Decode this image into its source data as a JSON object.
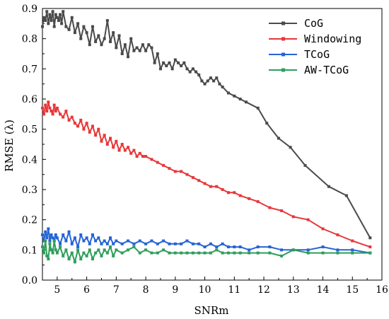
{
  "chart_data": {
    "type": "line",
    "xlabel": "SNRm",
    "ylabel": "RMSE (λ)",
    "xlim": [
      4.5,
      16
    ],
    "ylim": [
      0,
      0.9
    ],
    "x_ticks": [
      5,
      6,
      7,
      8,
      9,
      10,
      11,
      12,
      13,
      14,
      15,
      16
    ],
    "y_ticks": [
      0.0,
      0.1,
      0.2,
      0.3,
      0.4,
      0.5,
      0.6,
      0.7,
      0.8,
      0.9
    ],
    "legend_position": "top-right",
    "grid": false,
    "series": [
      {
        "name": "CoG",
        "color": "#4a4a4a",
        "x": [
          4.5,
          4.55,
          4.6,
          4.65,
          4.7,
          4.75,
          4.8,
          4.85,
          4.9,
          4.95,
          5.0,
          5.05,
          5.1,
          5.15,
          5.2,
          5.3,
          5.4,
          5.5,
          5.6,
          5.7,
          5.8,
          5.9,
          6.0,
          6.1,
          6.2,
          6.3,
          6.4,
          6.5,
          6.6,
          6.7,
          6.8,
          6.9,
          7.0,
          7.1,
          7.2,
          7.3,
          7.4,
          7.5,
          7.6,
          7.7,
          7.8,
          7.9,
          8.0,
          8.1,
          8.2,
          8.3,
          8.4,
          8.5,
          8.6,
          8.7,
          8.8,
          8.9,
          9.0,
          9.1,
          9.2,
          9.3,
          9.4,
          9.5,
          9.6,
          9.7,
          9.8,
          9.9,
          10.0,
          10.1,
          10.2,
          10.3,
          10.4,
          10.5,
          10.6,
          10.8,
          11.0,
          11.2,
          11.4,
          11.8,
          12.1,
          12.5,
          12.9,
          13.4,
          14.2,
          14.8,
          15.6
        ],
        "y": [
          0.84,
          0.87,
          0.86,
          0.89,
          0.85,
          0.88,
          0.86,
          0.89,
          0.84,
          0.88,
          0.87,
          0.86,
          0.88,
          0.85,
          0.89,
          0.84,
          0.83,
          0.87,
          0.82,
          0.85,
          0.8,
          0.84,
          0.82,
          0.78,
          0.84,
          0.79,
          0.81,
          0.78,
          0.8,
          0.86,
          0.79,
          0.82,
          0.77,
          0.81,
          0.75,
          0.78,
          0.74,
          0.8,
          0.76,
          0.77,
          0.76,
          0.78,
          0.76,
          0.78,
          0.77,
          0.72,
          0.75,
          0.7,
          0.72,
          0.71,
          0.72,
          0.7,
          0.73,
          0.72,
          0.71,
          0.72,
          0.7,
          0.69,
          0.7,
          0.69,
          0.68,
          0.66,
          0.65,
          0.66,
          0.67,
          0.66,
          0.67,
          0.65,
          0.64,
          0.62,
          0.61,
          0.6,
          0.59,
          0.57,
          0.52,
          0.47,
          0.44,
          0.38,
          0.31,
          0.28,
          0.14
        ]
      },
      {
        "name": "Windowing",
        "color": "#e8373a",
        "x": [
          4.5,
          4.55,
          4.6,
          4.65,
          4.7,
          4.75,
          4.8,
          4.85,
          4.9,
          4.95,
          5.0,
          5.1,
          5.2,
          5.3,
          5.4,
          5.5,
          5.6,
          5.7,
          5.8,
          5.9,
          6.0,
          6.1,
          6.2,
          6.3,
          6.4,
          6.5,
          6.6,
          6.7,
          6.8,
          6.9,
          7.0,
          7.1,
          7.2,
          7.3,
          7.4,
          7.5,
          7.6,
          7.7,
          7.8,
          7.9,
          8.0,
          8.2,
          8.4,
          8.6,
          8.8,
          9.0,
          9.2,
          9.4,
          9.6,
          9.8,
          10.0,
          10.2,
          10.4,
          10.6,
          10.8,
          11.0,
          11.2,
          11.5,
          11.8,
          12.2,
          12.6,
          13.0,
          13.5,
          14.0,
          14.5,
          15.0,
          15.6
        ],
        "y": [
          0.57,
          0.55,
          0.58,
          0.56,
          0.59,
          0.57,
          0.56,
          0.55,
          0.58,
          0.56,
          0.57,
          0.55,
          0.54,
          0.56,
          0.53,
          0.54,
          0.52,
          0.51,
          0.53,
          0.5,
          0.52,
          0.49,
          0.51,
          0.48,
          0.5,
          0.46,
          0.48,
          0.45,
          0.47,
          0.44,
          0.46,
          0.43,
          0.45,
          0.43,
          0.44,
          0.42,
          0.43,
          0.41,
          0.42,
          0.41,
          0.41,
          0.4,
          0.39,
          0.38,
          0.37,
          0.36,
          0.36,
          0.35,
          0.34,
          0.33,
          0.32,
          0.31,
          0.31,
          0.3,
          0.29,
          0.29,
          0.28,
          0.27,
          0.26,
          0.24,
          0.23,
          0.21,
          0.2,
          0.17,
          0.15,
          0.13,
          0.11
        ]
      },
      {
        "name": "TCoG",
        "color": "#2563d6",
        "x": [
          4.5,
          4.55,
          4.6,
          4.65,
          4.7,
          4.75,
          4.8,
          4.85,
          4.9,
          4.95,
          5.0,
          5.1,
          5.2,
          5.3,
          5.4,
          5.5,
          5.6,
          5.7,
          5.8,
          5.9,
          6.0,
          6.1,
          6.2,
          6.3,
          6.4,
          6.5,
          6.6,
          6.7,
          6.8,
          6.9,
          7.0,
          7.2,
          7.4,
          7.6,
          7.8,
          8.0,
          8.2,
          8.4,
          8.6,
          8.8,
          9.0,
          9.2,
          9.4,
          9.6,
          9.8,
          10.0,
          10.2,
          10.4,
          10.6,
          10.8,
          11.0,
          11.2,
          11.5,
          11.8,
          12.2,
          12.6,
          13.0,
          13.5,
          14.0,
          14.5,
          15.0,
          15.6
        ],
        "y": [
          0.15,
          0.13,
          0.16,
          0.14,
          0.17,
          0.13,
          0.15,
          0.14,
          0.13,
          0.15,
          0.14,
          0.12,
          0.15,
          0.13,
          0.16,
          0.12,
          0.14,
          0.11,
          0.15,
          0.13,
          0.14,
          0.12,
          0.15,
          0.13,
          0.14,
          0.12,
          0.13,
          0.12,
          0.14,
          0.12,
          0.13,
          0.12,
          0.13,
          0.12,
          0.13,
          0.12,
          0.13,
          0.12,
          0.13,
          0.12,
          0.12,
          0.12,
          0.13,
          0.12,
          0.12,
          0.11,
          0.12,
          0.11,
          0.12,
          0.11,
          0.11,
          0.11,
          0.1,
          0.11,
          0.11,
          0.1,
          0.1,
          0.1,
          0.11,
          0.1,
          0.1,
          0.09
        ]
      },
      {
        "name": "AW-TCoG",
        "color": "#2e9e5b",
        "x": [
          4.5,
          4.55,
          4.6,
          4.65,
          4.7,
          4.75,
          4.8,
          4.85,
          4.9,
          4.95,
          5.0,
          5.1,
          5.2,
          5.3,
          5.4,
          5.5,
          5.6,
          5.7,
          5.8,
          5.9,
          6.0,
          6.1,
          6.2,
          6.3,
          6.4,
          6.5,
          6.6,
          6.7,
          6.8,
          6.9,
          7.0,
          7.2,
          7.4,
          7.6,
          7.8,
          8.0,
          8.2,
          8.4,
          8.6,
          8.8,
          9.0,
          9.2,
          9.4,
          9.6,
          9.8,
          10.0,
          10.2,
          10.4,
          10.6,
          10.8,
          11.0,
          11.2,
          11.5,
          11.8,
          12.2,
          12.6,
          13.0,
          13.5,
          14.0,
          14.5,
          15.0,
          15.6
        ],
        "y": [
          0.11,
          0.09,
          0.13,
          0.08,
          0.07,
          0.12,
          0.1,
          0.09,
          0.13,
          0.1,
          0.09,
          0.11,
          0.08,
          0.1,
          0.07,
          0.09,
          0.06,
          0.1,
          0.07,
          0.09,
          0.08,
          0.1,
          0.07,
          0.09,
          0.1,
          0.08,
          0.1,
          0.09,
          0.11,
          0.08,
          0.1,
          0.09,
          0.1,
          0.11,
          0.09,
          0.1,
          0.09,
          0.09,
          0.1,
          0.09,
          0.09,
          0.09,
          0.09,
          0.09,
          0.09,
          0.09,
          0.09,
          0.1,
          0.09,
          0.09,
          0.09,
          0.09,
          0.09,
          0.09,
          0.09,
          0.08,
          0.1,
          0.09,
          0.09,
          0.09,
          0.09,
          0.09
        ]
      }
    ]
  }
}
